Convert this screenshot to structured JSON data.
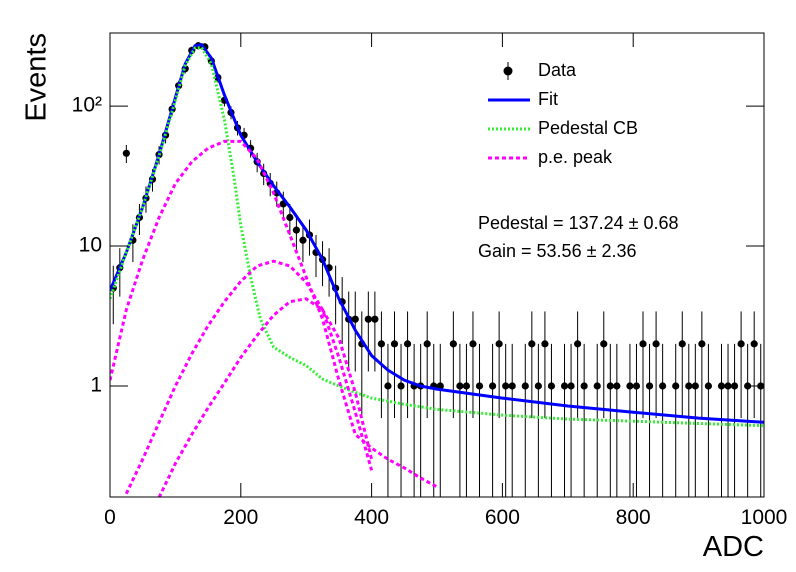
{
  "chart_data": {
    "type": "fit",
    "x_label": "ADC",
    "y_label": "Events",
    "xlim": [
      0,
      1000
    ],
    "xticks": [
      0,
      200,
      400,
      600,
      800,
      1000
    ],
    "ylim": [
      0.161,
      333
    ],
    "yticks": [
      1,
      10,
      {
        "value": 100,
        "label": "10²"
      }
    ],
    "log_y": true,
    "legend": "top-right",
    "annotations": [
      "Pedestal = 137.24 ± 0.68",
      "Gain = 53.56 ± 2.36"
    ],
    "series": [
      {
        "name": "Data",
        "type": "points",
        "color": "#000000",
        "x": [
          5,
          15,
          25,
          35,
          45,
          55,
          65,
          75,
          85,
          95,
          105,
          115,
          125,
          135,
          145,
          155,
          165,
          175,
          185,
          195,
          205,
          215,
          225,
          235,
          245,
          255,
          265,
          275,
          285,
          295,
          305,
          315,
          325,
          335,
          345,
          355,
          365,
          375,
          385,
          395,
          405,
          415,
          425,
          435,
          445,
          455,
          465,
          475,
          485,
          495,
          505,
          515,
          525,
          535,
          545,
          555,
          565,
          575,
          585,
          595,
          605,
          615,
          625,
          635,
          645,
          655,
          665,
          675,
          685,
          695,
          705,
          715,
          725,
          735,
          745,
          755,
          765,
          775,
          785,
          795,
          805,
          815,
          825,
          835,
          845,
          855,
          865,
          875,
          885,
          895,
          905,
          915,
          925,
          935,
          945,
          955,
          965,
          975,
          985,
          995
        ],
        "values": [
          5,
          7,
          46,
          11,
          16,
          22,
          30,
          45,
          62,
          95,
          140,
          185,
          250,
          270,
          265,
          210,
          160,
          110,
          90,
          70,
          62,
          50,
          40,
          33,
          28,
          24,
          20,
          16,
          13,
          11,
          12,
          9,
          8,
          7,
          5,
          4,
          3,
          3,
          2,
          3,
          3,
          2,
          1,
          2,
          1,
          2,
          1,
          1,
          2,
          1,
          1,
          null,
          2,
          1,
          1,
          2,
          1,
          null,
          1,
          2,
          1,
          1,
          null,
          1,
          2,
          1,
          2,
          1,
          null,
          1,
          1,
          2,
          1,
          null,
          1,
          2,
          1,
          1,
          null,
          1,
          1,
          2,
          1,
          2,
          1,
          null,
          1,
          2,
          1,
          1,
          2,
          1,
          null,
          1,
          1,
          1,
          2,
          1,
          2,
          1
        ],
        "errors": [
          2.24,
          2.65,
          6.78,
          3.32,
          4,
          4.69,
          5.48,
          6.71,
          7.87,
          9.75,
          11.83,
          13.6,
          15.81,
          16.43,
          16.28,
          14.49,
          12.65,
          10.49,
          9.49,
          8.37,
          7.87,
          7.07,
          6.32,
          5.74,
          5.29,
          4.9,
          4.47,
          4,
          3.61,
          3.32,
          3.46,
          3,
          2.83,
          2.65,
          2.24,
          2,
          1.73,
          1.73,
          1.41,
          1.73,
          1.73,
          1.41,
          1,
          1.41,
          1,
          1.41,
          1,
          1,
          1.41,
          1,
          1,
          null,
          1.41,
          1,
          1,
          1.41,
          1,
          null,
          1,
          1.41,
          1,
          1,
          null,
          1,
          1.41,
          1,
          1.41,
          1,
          null,
          1,
          1,
          1.41,
          1,
          null,
          1,
          1.41,
          1,
          1,
          null,
          1,
          1,
          1.41,
          1,
          1.41,
          1,
          null,
          1,
          1.41,
          1,
          1,
          1.41,
          1,
          null,
          1,
          1,
          1,
          1.41,
          1,
          1.41,
          1
        ]
      },
      {
        "name": "Fit",
        "type": "line",
        "color": "#0000ff",
        "dash": "none",
        "x": [
          0,
          25,
          50,
          75,
          100,
          115,
          130,
          140,
          155,
          175,
          200,
          225,
          250,
          275,
          300,
          325,
          350,
          375,
          400,
          425,
          450,
          475,
          500,
          600,
          700,
          800,
          900,
          1000
        ],
        "values": [
          4.8,
          9,
          19,
          45,
          115,
          200,
          270,
          275,
          220,
          120,
          62,
          40,
          27,
          19,
          13,
          8,
          4.2,
          2.5,
          1.65,
          1.3,
          1.1,
          1.0,
          0.95,
          0.82,
          0.72,
          0.65,
          0.59,
          0.55
        ]
      },
      {
        "name": "Pedestal CB",
        "type": "line",
        "color": "#33ee33",
        "dash": "2 2",
        "x": [
          0,
          25,
          50,
          75,
          100,
          115,
          130,
          140,
          155,
          175,
          190,
          200,
          215,
          230,
          250,
          275,
          300,
          325,
          350,
          375,
          400,
          425,
          450,
          475,
          500,
          600,
          700,
          800,
          900,
          1000
        ],
        "values": [
          4.2,
          9,
          19,
          44,
          110,
          195,
          260,
          262,
          200,
          80,
          30,
          14,
          6,
          3,
          1.9,
          1.6,
          1.4,
          1.12,
          1.0,
          0.9,
          0.82,
          0.78,
          0.74,
          0.71,
          0.68,
          0.62,
          0.58,
          0.56,
          0.54,
          0.52
        ]
      },
      {
        "name": "p.e. peak",
        "type": "curves",
        "color": "#ff00ff",
        "dash": "4 3",
        "x": [
          0,
          25,
          50,
          75,
          100,
          125,
          150,
          175,
          200,
          225,
          250,
          275,
          300,
          325,
          350,
          375,
          400,
          425,
          450,
          475,
          500,
          600,
          700,
          800,
          900,
          1000
        ],
        "curves": [
          [
            1.1,
            3.5,
            8,
            16,
            28,
            40,
            50,
            56,
            56,
            42,
            24,
            12,
            6,
            3,
            1.1,
            0.45,
            0.36,
            0.3,
            0.26,
            0.22,
            0.19,
            null,
            null,
            null,
            null,
            null
          ],
          [
            null,
            0.17,
            0.3,
            0.55,
            1.0,
            1.7,
            2.7,
            4.0,
            5.6,
            7.2,
            7.8,
            7.2,
            5.5,
            3.5,
            1.6,
            0.65,
            0.25,
            null,
            null,
            null,
            null,
            null,
            null,
            null,
            null,
            null
          ],
          [
            null,
            null,
            null,
            0.16,
            0.28,
            0.45,
            0.7,
            1.05,
            1.6,
            2.3,
            3.2,
            4.0,
            4.2,
            3.5,
            2.2,
            0.9,
            0.3,
            null,
            null,
            null,
            null,
            null,
            null,
            null,
            null,
            null
          ]
        ]
      }
    ]
  }
}
